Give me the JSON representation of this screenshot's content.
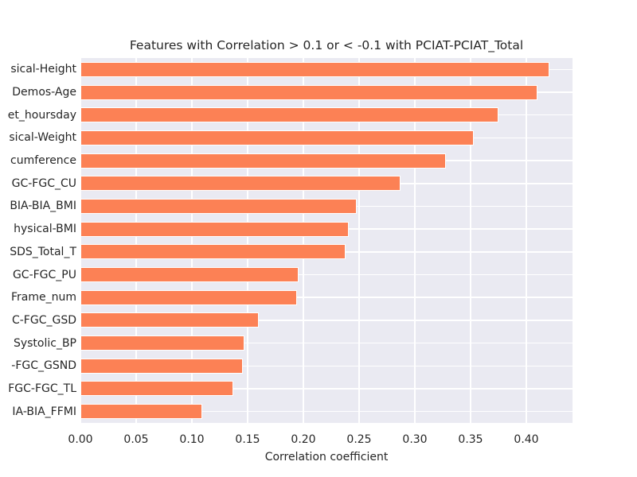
{
  "chart_data": {
    "type": "bar",
    "orientation": "horizontal",
    "title": "Features with Correlation > 0.1 or < -0.1 with PCIAT-PCIAT_Total",
    "xlabel": "Correlation coefficient",
    "ylabel": "",
    "categories": [
      "sical-Height",
      "Demos-Age",
      "et_hoursday",
      "sical-Weight",
      "cumference",
      "GC-FGC_CU",
      "BIA-BIA_BMI",
      "hysical-BMI",
      "SDS_Total_T",
      "GC-FGC_PU",
      "Frame_num",
      "C-FGC_GSD",
      "Systolic_BP",
      "-FGC_GSND",
      "FGC-FGC_TL",
      "IA-BIA_FFMI"
    ],
    "values": [
      0.421,
      0.41,
      0.375,
      0.353,
      0.328,
      0.287,
      0.248,
      0.241,
      0.238,
      0.196,
      0.194,
      0.16,
      0.147,
      0.146,
      0.137,
      0.109
    ],
    "xticks": [
      {
        "label": "0.00",
        "value": 0.0
      },
      {
        "label": "0.05",
        "value": 0.05
      },
      {
        "label": "0.10",
        "value": 0.1
      },
      {
        "label": "0.15",
        "value": 0.15
      },
      {
        "label": "0.20",
        "value": 0.2
      },
      {
        "label": "0.25",
        "value": 0.25
      },
      {
        "label": "0.30",
        "value": 0.3
      },
      {
        "label": "0.35",
        "value": 0.35
      },
      {
        "label": "0.40",
        "value": 0.4
      }
    ],
    "xlim": [
      0,
      0.4414
    ],
    "grid": true,
    "legend": null,
    "colors": {
      "bar": "#FC8155",
      "plot_bg": "#EAEAF2",
      "grid": "#FFFFFF",
      "text": "#262626",
      "fig_bg": "#FFFFFF"
    }
  }
}
